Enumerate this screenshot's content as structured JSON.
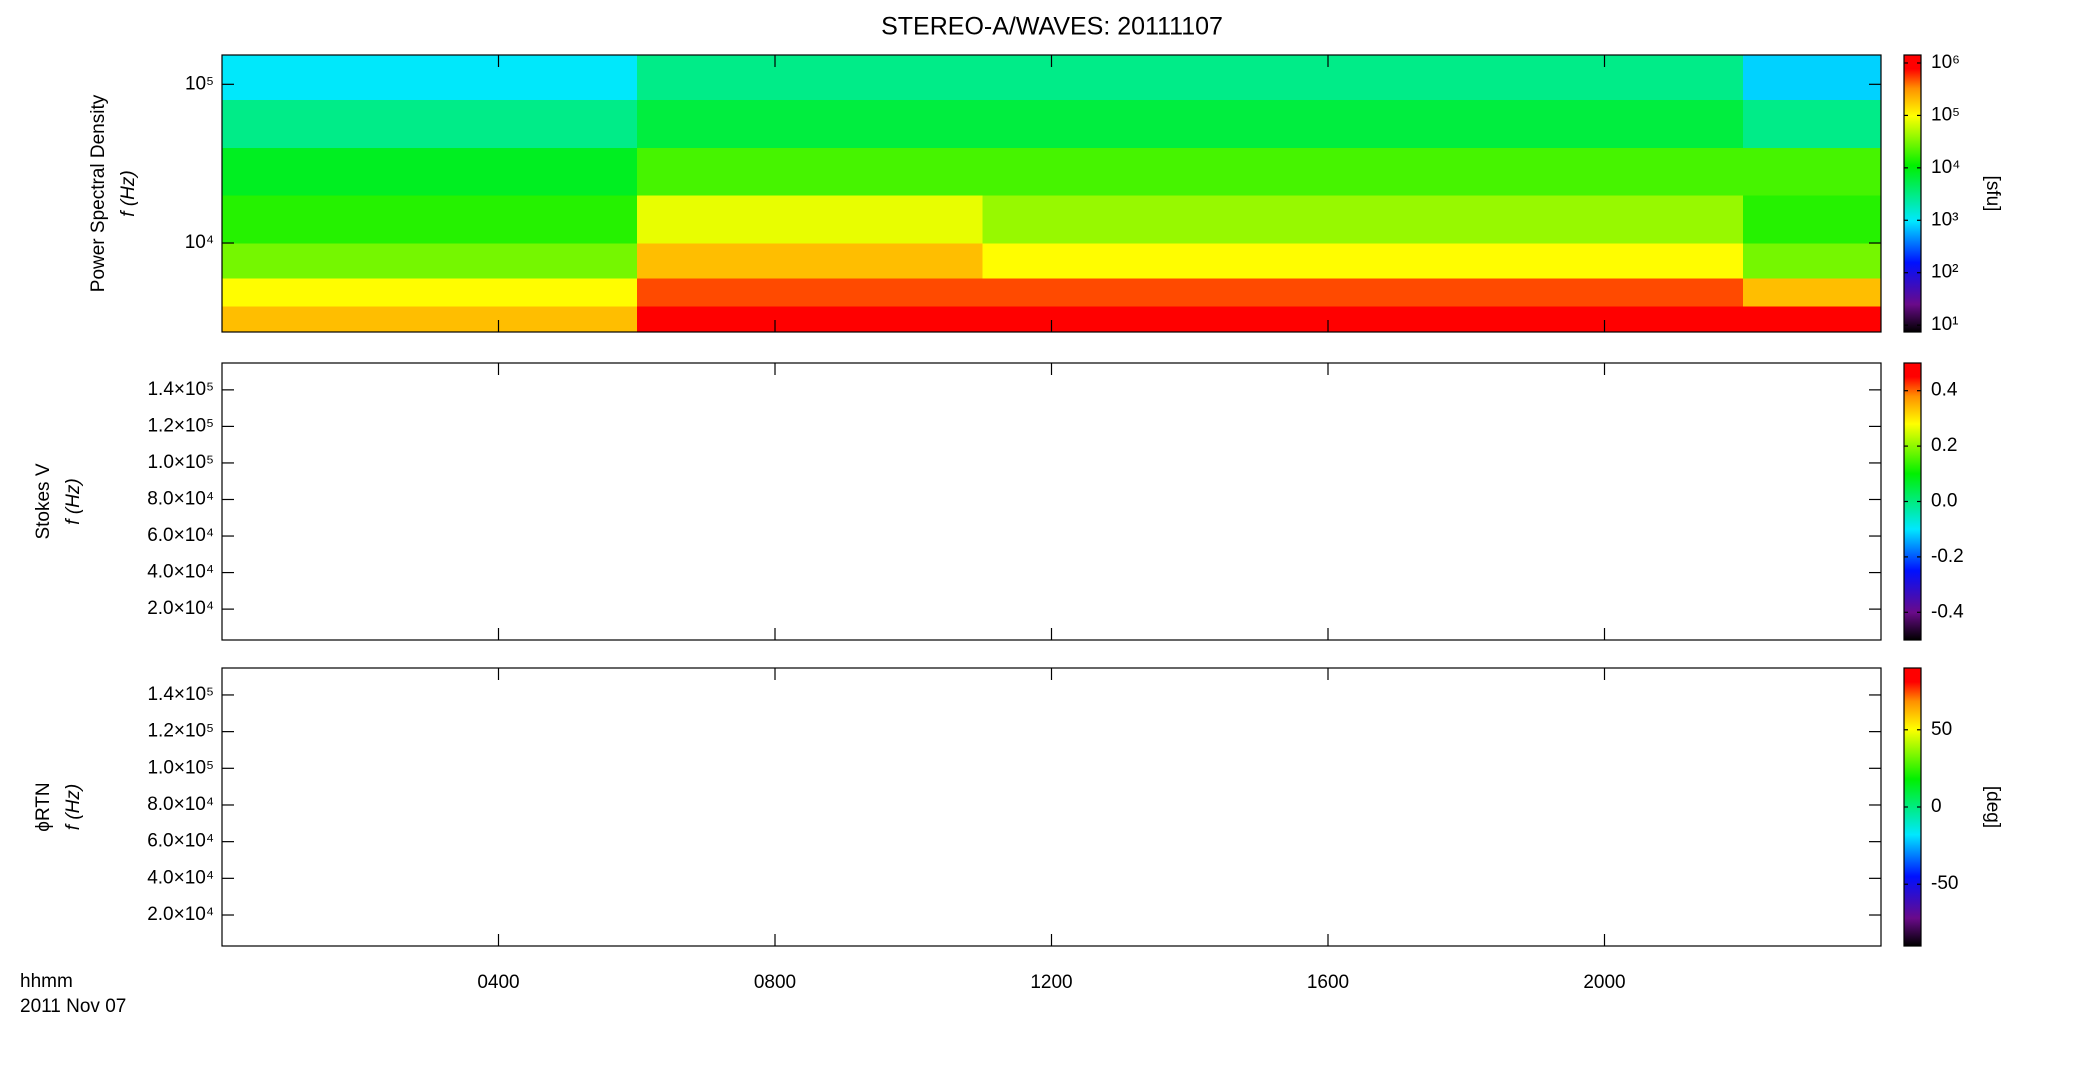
{
  "chart_data": [
    {
      "type": "heatmap",
      "title": "STEREO-A/WAVES: 20111107",
      "ylabel": [
        "Power Spectral Density",
        "f (Hz)"
      ],
      "ylog": true,
      "ylim": [
        2750,
        153000
      ],
      "yticks": [
        {
          "value": 10000,
          "label": "10⁴"
        },
        {
          "value": 100000,
          "label": "10⁵"
        }
      ],
      "t_edges": [
        0,
        1,
        2,
        3,
        4,
        5,
        6,
        7,
        8,
        9,
        10,
        11,
        12,
        13,
        14,
        15,
        16,
        17,
        18,
        19,
        20,
        21,
        22,
        23,
        24
      ],
      "f_edges": [
        2750,
        4000,
        6000,
        10000,
        20000,
        40000,
        80000,
        153000
      ],
      "z": [
        [
          200000,
          200000,
          200000,
          200000,
          200000,
          200000,
          1000000,
          1000000,
          1000000,
          1000000,
          1000000,
          1000000,
          1000000,
          1000000,
          1000000,
          1000000,
          1000000,
          1000000,
          1000000,
          1000000,
          1000000,
          1000000,
          1000000,
          1000000
        ],
        [
          100000,
          100000,
          100000,
          100000,
          100000,
          100000,
          500000,
          500000,
          500000,
          500000,
          500000,
          500000,
          500000,
          500000,
          500000,
          500000,
          500000,
          500000,
          500000,
          500000,
          500000,
          500000,
          200000,
          200000
        ],
        [
          30000,
          30000,
          30000,
          30000,
          30000,
          30000,
          200000,
          200000,
          200000,
          200000,
          200000,
          100000,
          100000,
          100000,
          100000,
          100000,
          100000,
          100000,
          100000,
          100000,
          100000,
          100000,
          30000,
          30000
        ],
        [
          15000,
          15000,
          15000,
          15000,
          15000,
          15000,
          80000,
          80000,
          80000,
          80000,
          80000,
          40000,
          40000,
          40000,
          40000,
          40000,
          40000,
          40000,
          40000,
          40000,
          40000,
          40000,
          15000,
          15000
        ],
        [
          8000,
          8000,
          8000,
          8000,
          8000,
          8000,
          20000,
          20000,
          20000,
          20000,
          20000,
          20000,
          20000,
          20000,
          20000,
          20000,
          20000,
          20000,
          20000,
          20000,
          20000,
          20000,
          20000,
          20000
        ],
        [
          3000,
          3000,
          3000,
          3000,
          3000,
          3000,
          6000,
          6000,
          6000,
          6000,
          6000,
          6000,
          6000,
          6000,
          6000,
          6000,
          6000,
          6000,
          6000,
          6000,
          6000,
          6000,
          3000,
          3000
        ],
        [
          1000,
          1000,
          1000,
          1000,
          1000,
          1000,
          3000,
          3000,
          3000,
          3000,
          3000,
          3000,
          3000,
          3000,
          3000,
          3000,
          3000,
          3000,
          3000,
          3000,
          3000,
          3000,
          800,
          800
        ]
      ],
      "zlog": true,
      "zlim": [
        7.4,
        1420000
      ],
      "cticks": [
        {
          "value": 10,
          "label": "10¹"
        },
        {
          "value": 100,
          "label": "10²"
        },
        {
          "value": 1000,
          "label": "10³"
        },
        {
          "value": 10000,
          "label": "10⁴"
        },
        {
          "value": 100000,
          "label": "10⁵"
        },
        {
          "value": 1000000,
          "label": "10⁶"
        }
      ],
      "clabel": "[sfu]"
    },
    {
      "type": "heatmap",
      "ylabel": [
        "Stokes V",
        "f (Hz)"
      ],
      "ylim": [
        3100,
        154700
      ],
      "yticks": [
        {
          "value": 20000,
          "label": "2.0×10⁴"
        },
        {
          "value": 40000,
          "label": "4.0×10⁴"
        },
        {
          "value": 60000,
          "label": "6.0×10⁴"
        },
        {
          "value": 80000,
          "label": "8.0×10⁴"
        },
        {
          "value": 100000,
          "label": "1.0×10⁵"
        },
        {
          "value": 120000,
          "label": "1.2×10⁵"
        },
        {
          "value": 140000,
          "label": "1.4×10⁵"
        }
      ],
      "zlim": [
        -0.5,
        0.5
      ],
      "cticks": [
        -0.4,
        -0.2,
        {
          "value": 0,
          "label": "0.0"
        },
        0.2,
        0.4
      ]
    },
    {
      "type": "heatmap",
      "ylabel": [
        "ϕRTN",
        "f (Hz)"
      ],
      "ylim": [
        3100,
        154700
      ],
      "yticks": [
        {
          "value": 20000,
          "label": "2.0×10⁴"
        },
        {
          "value": 40000,
          "label": "4.0×10⁴"
        },
        {
          "value": 60000,
          "label": "6.0×10⁴"
        },
        {
          "value": 80000,
          "label": "8.0×10⁴"
        },
        {
          "value": 100000,
          "label": "1.0×10⁵"
        },
        {
          "value": 120000,
          "label": "1.2×10⁵"
        },
        {
          "value": 140000,
          "label": "1.4×10⁵"
        }
      ],
      "zlim": [
        -90,
        90
      ],
      "cticks": [
        -50,
        0,
        50
      ],
      "clabel": "[deg]",
      "xlim": [
        0,
        24
      ],
      "xticks": [
        {
          "value": 4,
          "label": "0400"
        },
        {
          "value": 8,
          "label": "0800"
        },
        {
          "value": 12,
          "label": "1200"
        },
        {
          "value": 16,
          "label": "1600"
        },
        {
          "value": 20,
          "label": "2000"
        }
      ],
      "xlabel": [
        "hhmm",
        "2011 Nov 07"
      ]
    }
  ]
}
